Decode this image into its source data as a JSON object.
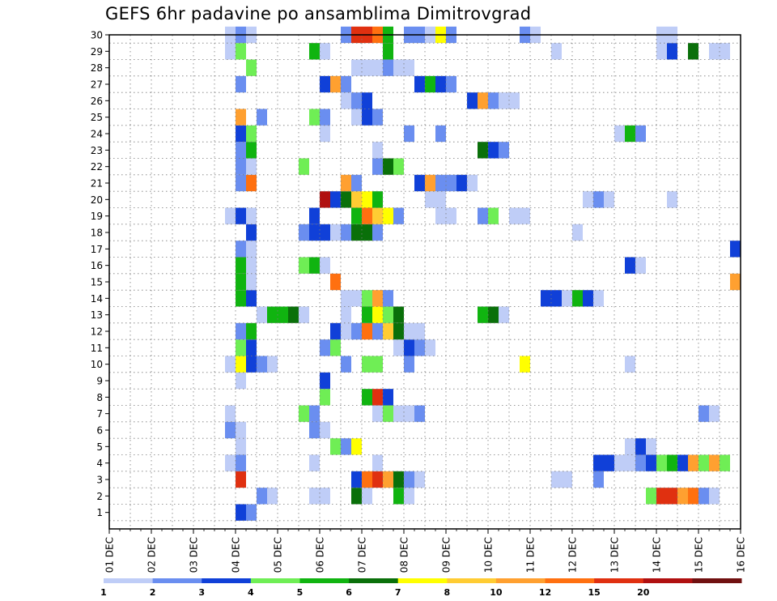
{
  "chart_data": {
    "type": "heatmap",
    "title": "GEFS 6hr padavine po ansamblima Dimitrovgrad",
    "xlabel": "",
    "ylabel": "",
    "x_categories": [
      "01 DEC",
      "02 DEC",
      "03 DEC",
      "04 DEC",
      "05 DEC",
      "06 DEC",
      "07 DEC",
      "08 DEC",
      "09 DEC",
      "10 DEC",
      "11 DEC",
      "12 DEC",
      "13 DEC",
      "14 DEC",
      "15 DEC",
      "16 DEC"
    ],
    "x_step": "6hr",
    "y_categories": [
      1,
      2,
      3,
      4,
      5,
      6,
      7,
      8,
      9,
      10,
      11,
      12,
      13,
      14,
      15,
      16,
      17,
      18,
      19,
      20,
      21,
      22,
      23,
      24,
      25,
      26,
      27,
      28,
      29,
      30
    ],
    "grid": true,
    "colorbar": {
      "levels": [
        1,
        2,
        3,
        4,
        5,
        6,
        7,
        8,
        10,
        12,
        15,
        20
      ],
      "colors": [
        "#bfcdf7",
        "#6a8ef0",
        "#1040d8",
        "#6fee55",
        "#10b410",
        "#0a700a",
        "#ffff00",
        "#ffcc33",
        "#ffa030",
        "#ff7010",
        "#e03010",
        "#b01010",
        "#701010"
      ]
    },
    "cells": [
      {
        "t": 12,
        "m": 0,
        "c": 2
      },
      {
        "t": 13,
        "m": 0,
        "c": 1
      },
      {
        "t": 14,
        "m": 1,
        "c": 1
      },
      {
        "t": 15,
        "m": 1,
        "c": 0
      },
      {
        "t": 19,
        "m": 1,
        "c": 0
      },
      {
        "t": 20,
        "m": 1,
        "c": 0
      },
      {
        "t": 23,
        "m": 1,
        "c": 5
      },
      {
        "t": 24,
        "m": 1,
        "c": 0
      },
      {
        "t": 27,
        "m": 1,
        "c": 4
      },
      {
        "t": 28,
        "m": 1,
        "c": 0
      },
      {
        "t": 51,
        "m": 1,
        "c": 3
      },
      {
        "t": 52,
        "m": 1,
        "c": 10
      },
      {
        "t": 53,
        "m": 1,
        "c": 10
      },
      {
        "t": 54,
        "m": 1,
        "c": 8
      },
      {
        "t": 55,
        "m": 1,
        "c": 9
      },
      {
        "t": 56,
        "m": 1,
        "c": 1
      },
      {
        "t": 57,
        "m": 1,
        "c": 0
      },
      {
        "t": 12,
        "m": 2,
        "c": 10
      },
      {
        "t": 23,
        "m": 2,
        "c": 2
      },
      {
        "t": 24,
        "m": 2,
        "c": 9
      },
      {
        "t": 25,
        "m": 2,
        "c": 10
      },
      {
        "t": 26,
        "m": 2,
        "c": 8
      },
      {
        "t": 27,
        "m": 2,
        "c": 5
      },
      {
        "t": 28,
        "m": 2,
        "c": 1
      },
      {
        "t": 29,
        "m": 2,
        "c": 0
      },
      {
        "t": 42,
        "m": 2,
        "c": 0
      },
      {
        "t": 43,
        "m": 2,
        "c": 0
      },
      {
        "t": 46,
        "m": 2,
        "c": 1
      },
      {
        "t": 11,
        "m": 3,
        "c": 0
      },
      {
        "t": 12,
        "m": 3,
        "c": 1
      },
      {
        "t": 19,
        "m": 3,
        "c": 0
      },
      {
        "t": 25,
        "m": 3,
        "c": 0
      },
      {
        "t": 46,
        "m": 3,
        "c": 2
      },
      {
        "t": 47,
        "m": 3,
        "c": 2
      },
      {
        "t": 48,
        "m": 3,
        "c": 0
      },
      {
        "t": 49,
        "m": 3,
        "c": 0
      },
      {
        "t": 50,
        "m": 3,
        "c": 1
      },
      {
        "t": 51,
        "m": 3,
        "c": 2
      },
      {
        "t": 52,
        "m": 3,
        "c": 3
      },
      {
        "t": 53,
        "m": 3,
        "c": 4
      },
      {
        "t": 54,
        "m": 3,
        "c": 2
      },
      {
        "t": 55,
        "m": 3,
        "c": 8
      },
      {
        "t": 56,
        "m": 3,
        "c": 3
      },
      {
        "t": 57,
        "m": 3,
        "c": 8
      },
      {
        "t": 58,
        "m": 3,
        "c": 3
      },
      {
        "t": 12,
        "m": 4,
        "c": 0
      },
      {
        "t": 21,
        "m": 4,
        "c": 3
      },
      {
        "t": 22,
        "m": 4,
        "c": 1
      },
      {
        "t": 23,
        "m": 4,
        "c": 6
      },
      {
        "t": 49,
        "m": 4,
        "c": 0
      },
      {
        "t": 50,
        "m": 4,
        "c": 2
      },
      {
        "t": 51,
        "m": 4,
        "c": 0
      },
      {
        "t": 11,
        "m": 5,
        "c": 1
      },
      {
        "t": 12,
        "m": 5,
        "c": 0
      },
      {
        "t": 19,
        "m": 5,
        "c": 1
      },
      {
        "t": 20,
        "m": 5,
        "c": 0
      },
      {
        "t": 11,
        "m": 6,
        "c": 0
      },
      {
        "t": 18,
        "m": 6,
        "c": 3
      },
      {
        "t": 19,
        "m": 6,
        "c": 1
      },
      {
        "t": 25,
        "m": 6,
        "c": 0
      },
      {
        "t": 26,
        "m": 6,
        "c": 3
      },
      {
        "t": 27,
        "m": 6,
        "c": 0
      },
      {
        "t": 28,
        "m": 6,
        "c": 0
      },
      {
        "t": 29,
        "m": 6,
        "c": 1
      },
      {
        "t": 56,
        "m": 6,
        "c": 1
      },
      {
        "t": 57,
        "m": 6,
        "c": 0
      },
      {
        "t": 20,
        "m": 7,
        "c": 3
      },
      {
        "t": 24,
        "m": 7,
        "c": 4
      },
      {
        "t": 25,
        "m": 7,
        "c": 10
      },
      {
        "t": 26,
        "m": 7,
        "c": 2
      },
      {
        "t": 20,
        "m": 8,
        "c": 2
      },
      {
        "t": 12,
        "m": 8,
        "c": 0
      },
      {
        "t": 11,
        "m": 9,
        "c": 0
      },
      {
        "t": 12,
        "m": 9,
        "c": 6
      },
      {
        "t": 13,
        "m": 9,
        "c": 2
      },
      {
        "t": 14,
        "m": 9,
        "c": 1
      },
      {
        "t": 15,
        "m": 9,
        "c": 0
      },
      {
        "t": 22,
        "m": 9,
        "c": 1
      },
      {
        "t": 24,
        "m": 9,
        "c": 3
      },
      {
        "t": 25,
        "m": 9,
        "c": 3
      },
      {
        "t": 28,
        "m": 9,
        "c": 1
      },
      {
        "t": 39,
        "m": 9,
        "c": 6
      },
      {
        "t": 49,
        "m": 9,
        "c": 0
      },
      {
        "t": 12,
        "m": 10,
        "c": 3
      },
      {
        "t": 13,
        "m": 10,
        "c": 2
      },
      {
        "t": 20,
        "m": 10,
        "c": 1
      },
      {
        "t": 21,
        "m": 10,
        "c": 3
      },
      {
        "t": 27,
        "m": 10,
        "c": 0
      },
      {
        "t": 28,
        "m": 10,
        "c": 2
      },
      {
        "t": 29,
        "m": 10,
        "c": 1
      },
      {
        "t": 30,
        "m": 10,
        "c": 0
      },
      {
        "t": 12,
        "m": 11,
        "c": 1
      },
      {
        "t": 13,
        "m": 11,
        "c": 4
      },
      {
        "t": 21,
        "m": 11,
        "c": 2
      },
      {
        "t": 22,
        "m": 11,
        "c": 0
      },
      {
        "t": 23,
        "m": 11,
        "c": 1
      },
      {
        "t": 24,
        "m": 11,
        "c": 9
      },
      {
        "t": 25,
        "m": 11,
        "c": 1
      },
      {
        "t": 26,
        "m": 11,
        "c": 7
      },
      {
        "t": 27,
        "m": 11,
        "c": 5
      },
      {
        "t": 28,
        "m": 11,
        "c": 0
      },
      {
        "t": 29,
        "m": 11,
        "c": 0
      },
      {
        "t": 14,
        "m": 12,
        "c": 0
      },
      {
        "t": 15,
        "m": 12,
        "c": 4
      },
      {
        "t": 16,
        "m": 12,
        "c": 4
      },
      {
        "t": 17,
        "m": 12,
        "c": 5
      },
      {
        "t": 18,
        "m": 12,
        "c": 0
      },
      {
        "t": 22,
        "m": 12,
        "c": 0
      },
      {
        "t": 24,
        "m": 12,
        "c": 4
      },
      {
        "t": 25,
        "m": 12,
        "c": 6
      },
      {
        "t": 26,
        "m": 12,
        "c": 3
      },
      {
        "t": 27,
        "m": 12,
        "c": 5
      },
      {
        "t": 35,
        "m": 12,
        "c": 4
      },
      {
        "t": 36,
        "m": 12,
        "c": 5
      },
      {
        "t": 37,
        "m": 12,
        "c": 0
      },
      {
        "t": 12,
        "m": 13,
        "c": 4
      },
      {
        "t": 13,
        "m": 13,
        "c": 2
      },
      {
        "t": 22,
        "m": 13,
        "c": 0
      },
      {
        "t": 23,
        "m": 13,
        "c": 0
      },
      {
        "t": 24,
        "m": 13,
        "c": 3
      },
      {
        "t": 25,
        "m": 13,
        "c": 8
      },
      {
        "t": 26,
        "m": 13,
        "c": 1
      },
      {
        "t": 41,
        "m": 13,
        "c": 2
      },
      {
        "t": 42,
        "m": 13,
        "c": 2
      },
      {
        "t": 43,
        "m": 13,
        "c": 0
      },
      {
        "t": 44,
        "m": 13,
        "c": 4
      },
      {
        "t": 45,
        "m": 13,
        "c": 2
      },
      {
        "t": 46,
        "m": 13,
        "c": 0
      },
      {
        "t": 12,
        "m": 14,
        "c": 4
      },
      {
        "t": 13,
        "m": 14,
        "c": 0
      },
      {
        "t": 21,
        "m": 14,
        "c": 9
      },
      {
        "t": 59,
        "m": 14,
        "c": 8
      },
      {
        "t": 12,
        "m": 15,
        "c": 4
      },
      {
        "t": 13,
        "m": 15,
        "c": 0
      },
      {
        "t": 18,
        "m": 15,
        "c": 3
      },
      {
        "t": 19,
        "m": 15,
        "c": 4
      },
      {
        "t": 20,
        "m": 15,
        "c": 0
      },
      {
        "t": 49,
        "m": 15,
        "c": 2
      },
      {
        "t": 50,
        "m": 15,
        "c": 0
      },
      {
        "t": 12,
        "m": 16,
        "c": 1
      },
      {
        "t": 13,
        "m": 16,
        "c": 0
      },
      {
        "t": 59,
        "m": 16,
        "c": 2
      },
      {
        "t": 13,
        "m": 17,
        "c": 2
      },
      {
        "t": 18,
        "m": 17,
        "c": 1
      },
      {
        "t": 19,
        "m": 17,
        "c": 2
      },
      {
        "t": 20,
        "m": 17,
        "c": 2
      },
      {
        "t": 21,
        "m": 17,
        "c": 0
      },
      {
        "t": 22,
        "m": 17,
        "c": 1
      },
      {
        "t": 23,
        "m": 17,
        "c": 5
      },
      {
        "t": 24,
        "m": 17,
        "c": 5
      },
      {
        "t": 25,
        "m": 17,
        "c": 1
      },
      {
        "t": 44,
        "m": 17,
        "c": 0
      },
      {
        "t": 11,
        "m": 18,
        "c": 0
      },
      {
        "t": 12,
        "m": 18,
        "c": 2
      },
      {
        "t": 13,
        "m": 18,
        "c": 0
      },
      {
        "t": 19,
        "m": 18,
        "c": 2
      },
      {
        "t": 23,
        "m": 18,
        "c": 4
      },
      {
        "t": 24,
        "m": 18,
        "c": 9
      },
      {
        "t": 25,
        "m": 18,
        "c": 7
      },
      {
        "t": 26,
        "m": 18,
        "c": 6
      },
      {
        "t": 27,
        "m": 18,
        "c": 1
      },
      {
        "t": 31,
        "m": 18,
        "c": 0
      },
      {
        "t": 32,
        "m": 18,
        "c": 0
      },
      {
        "t": 35,
        "m": 18,
        "c": 1
      },
      {
        "t": 36,
        "m": 18,
        "c": 3
      },
      {
        "t": 38,
        "m": 18,
        "c": 0
      },
      {
        "t": 39,
        "m": 18,
        "c": 0
      },
      {
        "t": 20,
        "m": 19,
        "c": 11
      },
      {
        "t": 21,
        "m": 19,
        "c": 2
      },
      {
        "t": 22,
        "m": 19,
        "c": 5
      },
      {
        "t": 23,
        "m": 19,
        "c": 7
      },
      {
        "t": 24,
        "m": 19,
        "c": 6
      },
      {
        "t": 25,
        "m": 19,
        "c": 4
      },
      {
        "t": 30,
        "m": 19,
        "c": 0
      },
      {
        "t": 31,
        "m": 19,
        "c": 0
      },
      {
        "t": 45,
        "m": 19,
        "c": 0
      },
      {
        "t": 46,
        "m": 19,
        "c": 1
      },
      {
        "t": 47,
        "m": 19,
        "c": 0
      },
      {
        "t": 53,
        "m": 19,
        "c": 0
      },
      {
        "t": 12,
        "m": 20,
        "c": 1
      },
      {
        "t": 13,
        "m": 20,
        "c": 9
      },
      {
        "t": 22,
        "m": 20,
        "c": 8
      },
      {
        "t": 23,
        "m": 20,
        "c": 1
      },
      {
        "t": 29,
        "m": 20,
        "c": 2
      },
      {
        "t": 30,
        "m": 20,
        "c": 8
      },
      {
        "t": 31,
        "m": 20,
        "c": 1
      },
      {
        "t": 32,
        "m": 20,
        "c": 1
      },
      {
        "t": 33,
        "m": 20,
        "c": 2
      },
      {
        "t": 34,
        "m": 20,
        "c": 0
      },
      {
        "t": 12,
        "m": 21,
        "c": 1
      },
      {
        "t": 13,
        "m": 21,
        "c": 0
      },
      {
        "t": 18,
        "m": 21,
        "c": 3
      },
      {
        "t": 25,
        "m": 21,
        "c": 1
      },
      {
        "t": 26,
        "m": 21,
        "c": 5
      },
      {
        "t": 27,
        "m": 21,
        "c": 3
      },
      {
        "t": 12,
        "m": 22,
        "c": 1
      },
      {
        "t": 13,
        "m": 22,
        "c": 4
      },
      {
        "t": 25,
        "m": 22,
        "c": 0
      },
      {
        "t": 35,
        "m": 22,
        "c": 5
      },
      {
        "t": 36,
        "m": 22,
        "c": 2
      },
      {
        "t": 37,
        "m": 22,
        "c": 1
      },
      {
        "t": 12,
        "m": 23,
        "c": 2
      },
      {
        "t": 13,
        "m": 23,
        "c": 3
      },
      {
        "t": 20,
        "m": 23,
        "c": 0
      },
      {
        "t": 28,
        "m": 23,
        "c": 1
      },
      {
        "t": 31,
        "m": 23,
        "c": 1
      },
      {
        "t": 48,
        "m": 23,
        "c": 0
      },
      {
        "t": 49,
        "m": 23,
        "c": 4
      },
      {
        "t": 50,
        "m": 23,
        "c": 1
      },
      {
        "t": 12,
        "m": 24,
        "c": 8
      },
      {
        "t": 14,
        "m": 24,
        "c": 1
      },
      {
        "t": 19,
        "m": 24,
        "c": 3
      },
      {
        "t": 20,
        "m": 24,
        "c": 1
      },
      {
        "t": 23,
        "m": 24,
        "c": 0
      },
      {
        "t": 24,
        "m": 24,
        "c": 2
      },
      {
        "t": 25,
        "m": 24,
        "c": 1
      },
      {
        "t": 22,
        "m": 25,
        "c": 0
      },
      {
        "t": 23,
        "m": 25,
        "c": 1
      },
      {
        "t": 24,
        "m": 25,
        "c": 2
      },
      {
        "t": 34,
        "m": 25,
        "c": 2
      },
      {
        "t": 35,
        "m": 25,
        "c": 8
      },
      {
        "t": 36,
        "m": 25,
        "c": 1
      },
      {
        "t": 37,
        "m": 25,
        "c": 0
      },
      {
        "t": 38,
        "m": 25,
        "c": 0
      },
      {
        "t": 12,
        "m": 26,
        "c": 1
      },
      {
        "t": 20,
        "m": 26,
        "c": 2
      },
      {
        "t": 21,
        "m": 26,
        "c": 8
      },
      {
        "t": 22,
        "m": 26,
        "c": 1
      },
      {
        "t": 29,
        "m": 26,
        "c": 2
      },
      {
        "t": 30,
        "m": 26,
        "c": 4
      },
      {
        "t": 31,
        "m": 26,
        "c": 2
      },
      {
        "t": 32,
        "m": 26,
        "c": 1
      },
      {
        "t": 13,
        "m": 27,
        "c": 3
      },
      {
        "t": 23,
        "m": 27,
        "c": 0
      },
      {
        "t": 24,
        "m": 27,
        "c": 0
      },
      {
        "t": 25,
        "m": 27,
        "c": 0
      },
      {
        "t": 26,
        "m": 27,
        "c": 1
      },
      {
        "t": 27,
        "m": 27,
        "c": 0
      },
      {
        "t": 28,
        "m": 27,
        "c": 0
      },
      {
        "t": 11,
        "m": 28,
        "c": 0
      },
      {
        "t": 12,
        "m": 28,
        "c": 3
      },
      {
        "t": 19,
        "m": 28,
        "c": 4
      },
      {
        "t": 20,
        "m": 28,
        "c": 0
      },
      {
        "t": 26,
        "m": 28,
        "c": 4
      },
      {
        "t": 42,
        "m": 28,
        "c": 0
      },
      {
        "t": 52,
        "m": 28,
        "c": 0
      },
      {
        "t": 53,
        "m": 28,
        "c": 2
      },
      {
        "t": 55,
        "m": 28,
        "c": 5
      },
      {
        "t": 57,
        "m": 28,
        "c": 0
      },
      {
        "t": 58,
        "m": 28,
        "c": 0
      },
      {
        "t": 11,
        "m": 29,
        "c": 0
      },
      {
        "t": 12,
        "m": 29,
        "c": 1
      },
      {
        "t": 13,
        "m": 29,
        "c": 0
      },
      {
        "t": 22,
        "m": 29,
        "c": 1
      },
      {
        "t": 23,
        "m": 29,
        "c": 10
      },
      {
        "t": 24,
        "m": 29,
        "c": 10
      },
      {
        "t": 25,
        "m": 29,
        "c": 9
      },
      {
        "t": 26,
        "m": 29,
        "c": 4
      },
      {
        "t": 28,
        "m": 29,
        "c": 1
      },
      {
        "t": 29,
        "m": 29,
        "c": 1
      },
      {
        "t": 30,
        "m": 29,
        "c": 0
      },
      {
        "t": 31,
        "m": 29,
        "c": 6
      },
      {
        "t": 32,
        "m": 29,
        "c": 1
      },
      {
        "t": 39,
        "m": 29,
        "c": 1
      },
      {
        "t": 40,
        "m": 29,
        "c": 0
      },
      {
        "t": 52,
        "m": 29,
        "c": 0
      },
      {
        "t": 53,
        "m": 29,
        "c": 0
      }
    ]
  }
}
